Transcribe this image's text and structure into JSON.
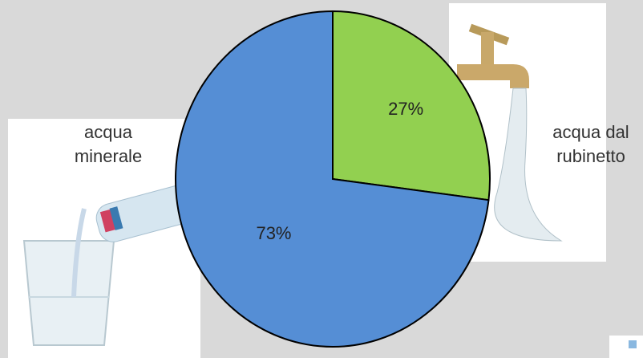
{
  "chart_data": {
    "type": "pie",
    "categories": [
      "acqua dal rubinetto",
      "acqua minerale"
    ],
    "values": [
      27,
      73
    ],
    "value_labels": [
      "27%",
      "73%"
    ],
    "colors": [
      "#92d050",
      "#558ed5"
    ]
  }
}
